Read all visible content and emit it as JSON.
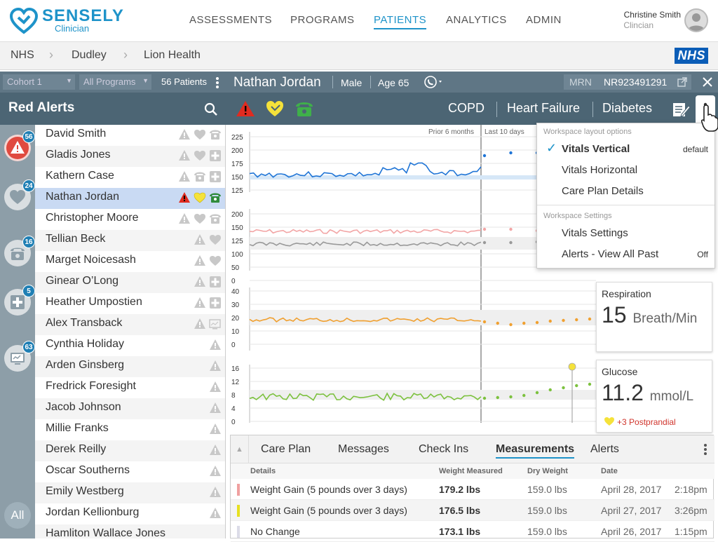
{
  "app": {
    "brand": "SENSELY",
    "brand_sub": "Clinician"
  },
  "nav": [
    {
      "label": "ASSESSMENTS"
    },
    {
      "label": "PROGRAMS"
    },
    {
      "label": "PATIENTS"
    },
    {
      "label": "ANALYTICS"
    },
    {
      "label": "ADMIN"
    }
  ],
  "user": {
    "name": "Christine Smith",
    "role": "Clincian"
  },
  "breadcrumb": [
    "NHS",
    "Dudley",
    "Lion Health"
  ],
  "nhs_logo": "NHS",
  "filters": {
    "cohort": "Cohort 1",
    "programs": "All Programs",
    "patient_count": "56 Patients"
  },
  "red_alerts": {
    "title": "Red Alerts"
  },
  "rail": [
    {
      "icon": "alert-triangle-icon",
      "count": "56"
    },
    {
      "icon": "heart-icon",
      "count": "24"
    },
    {
      "icon": "phone-icon",
      "count": "16"
    },
    {
      "icon": "medical-cross-icon",
      "count": "5"
    },
    {
      "icon": "device-icon",
      "count": "63"
    }
  ],
  "rail_all": "All",
  "patients": [
    {
      "name": "David Smith",
      "icons": [
        "alert",
        "heart",
        "phone"
      ]
    },
    {
      "name": "Gladis Jones",
      "icons": [
        "alert",
        "heart",
        "cross"
      ]
    },
    {
      "name": "Kathern Case",
      "icons": [
        "alert",
        "phone",
        "cross"
      ]
    },
    {
      "name": "Nathan Jordan",
      "icons": [
        "alert-red",
        "heart-yellow",
        "phone-green"
      ]
    },
    {
      "name": "Christopher Moore",
      "icons": [
        "alert",
        "heart",
        "phone"
      ]
    },
    {
      "name": "Tellian Beck",
      "icons": [
        "alert",
        "heart"
      ]
    },
    {
      "name": "Marget Noicesash",
      "icons": [
        "alert",
        "heart"
      ]
    },
    {
      "name": "Ginear O’Long",
      "icons": [
        "alert",
        "cross"
      ]
    },
    {
      "name": "Heather Umpostien",
      "icons": [
        "alert",
        "cross"
      ]
    },
    {
      "name": "Alex Transback",
      "icons": [
        "alert",
        "device"
      ]
    },
    {
      "name": "Cynthia Holiday",
      "icons": [
        "alert"
      ]
    },
    {
      "name": "Arden Ginsberg",
      "icons": [
        "alert"
      ]
    },
    {
      "name": "Fredrick Foresight",
      "icons": [
        "alert"
      ]
    },
    {
      "name": "Jacob Johnson",
      "icons": [
        "alert"
      ]
    },
    {
      "name": "Millie Franks",
      "icons": [
        "alert"
      ]
    },
    {
      "name": "Derek Reilly",
      "icons": [
        "alert"
      ]
    },
    {
      "name": "Oscar Southerns",
      "icons": [
        "alert"
      ]
    },
    {
      "name": "Emily Westberg",
      "icons": [
        "alert"
      ]
    },
    {
      "name": "Jordan Kellionburg",
      "icons": [
        "alert"
      ]
    },
    {
      "name": "Hamliton Wallace Jones",
      "icons": []
    }
  ],
  "patient": {
    "name": "Nathan Jordan",
    "sex": "Male",
    "age": "Age 65",
    "mrn_label": "MRN",
    "mrn": "NR923491291"
  },
  "conditions": [
    "COPD",
    "Heart Failure",
    "Diabetes"
  ],
  "charts": {
    "prior_label": "Prior 6 months",
    "last_label": "Last 10 days",
    "weight_ticks": [
      "225",
      "200",
      "175",
      "150",
      "125"
    ],
    "bp_ticks": [
      "200",
      "150",
      "125",
      "100",
      "50",
      "0"
    ],
    "resp_ticks": [
      "40",
      "30",
      "20",
      "10",
      "0"
    ],
    "glucose_ticks": [
      "16",
      "12",
      "8",
      "4",
      "0"
    ]
  },
  "vital_cards": {
    "respiration": {
      "title": "Respiration",
      "value": "15",
      "unit": "Breath/Min"
    },
    "glucose": {
      "title": "Glucose",
      "value": "11.2",
      "unit": "mmol/L",
      "note": "+3 Postprandial"
    }
  },
  "tabs": [
    {
      "label": "Care Plan"
    },
    {
      "label": "Messages"
    },
    {
      "label": "Check Ins"
    },
    {
      "label": "Measurements"
    },
    {
      "label": "Alerts"
    }
  ],
  "table": {
    "headers": [
      "Details",
      "Weight Measured",
      "Dry Weight",
      "Date"
    ],
    "rows": [
      {
        "detail": "Weight Gain (5 pounds over 3 days)",
        "measured": "179.2 lbs",
        "dry": "159.0 lbs",
        "date": "April 28, 2017",
        "time": "2:18pm",
        "color": "#f0a0a0"
      },
      {
        "detail": "Weight Gain (5 pounds over 3 days)",
        "measured": "176.5  lbs",
        "dry": "159.0 lbs",
        "date": "April 27, 2017",
        "time": "3:26pm",
        "color": "#e6e020"
      },
      {
        "detail": "No Change",
        "measured": "173.1 lbs",
        "dry": "159.0 lbs",
        "date": "April 26, 2017",
        "time": "1:15pm",
        "color": "#dcdce8"
      }
    ]
  },
  "menu": {
    "section1": "Workspace layout options",
    "items1": [
      {
        "label": "Vitals Vertical",
        "checked": true,
        "right": "default"
      },
      {
        "label": "Vitals Horizontal"
      },
      {
        "label": "Care Plan Details"
      }
    ],
    "section2": "Workspace Settings",
    "items2": [
      {
        "label": "Vitals Settings"
      },
      {
        "label": "Alerts - View All Past",
        "right": "Off"
      }
    ]
  },
  "colors": {
    "brand": "#1e93c9",
    "header": "#5f7685",
    "alert_red": "#d0342c",
    "weight_line": "#1e74d6",
    "bp_line": "#f2a5a5",
    "resp_line": "#f0a030",
    "glucose_line": "#7cc13e"
  }
}
